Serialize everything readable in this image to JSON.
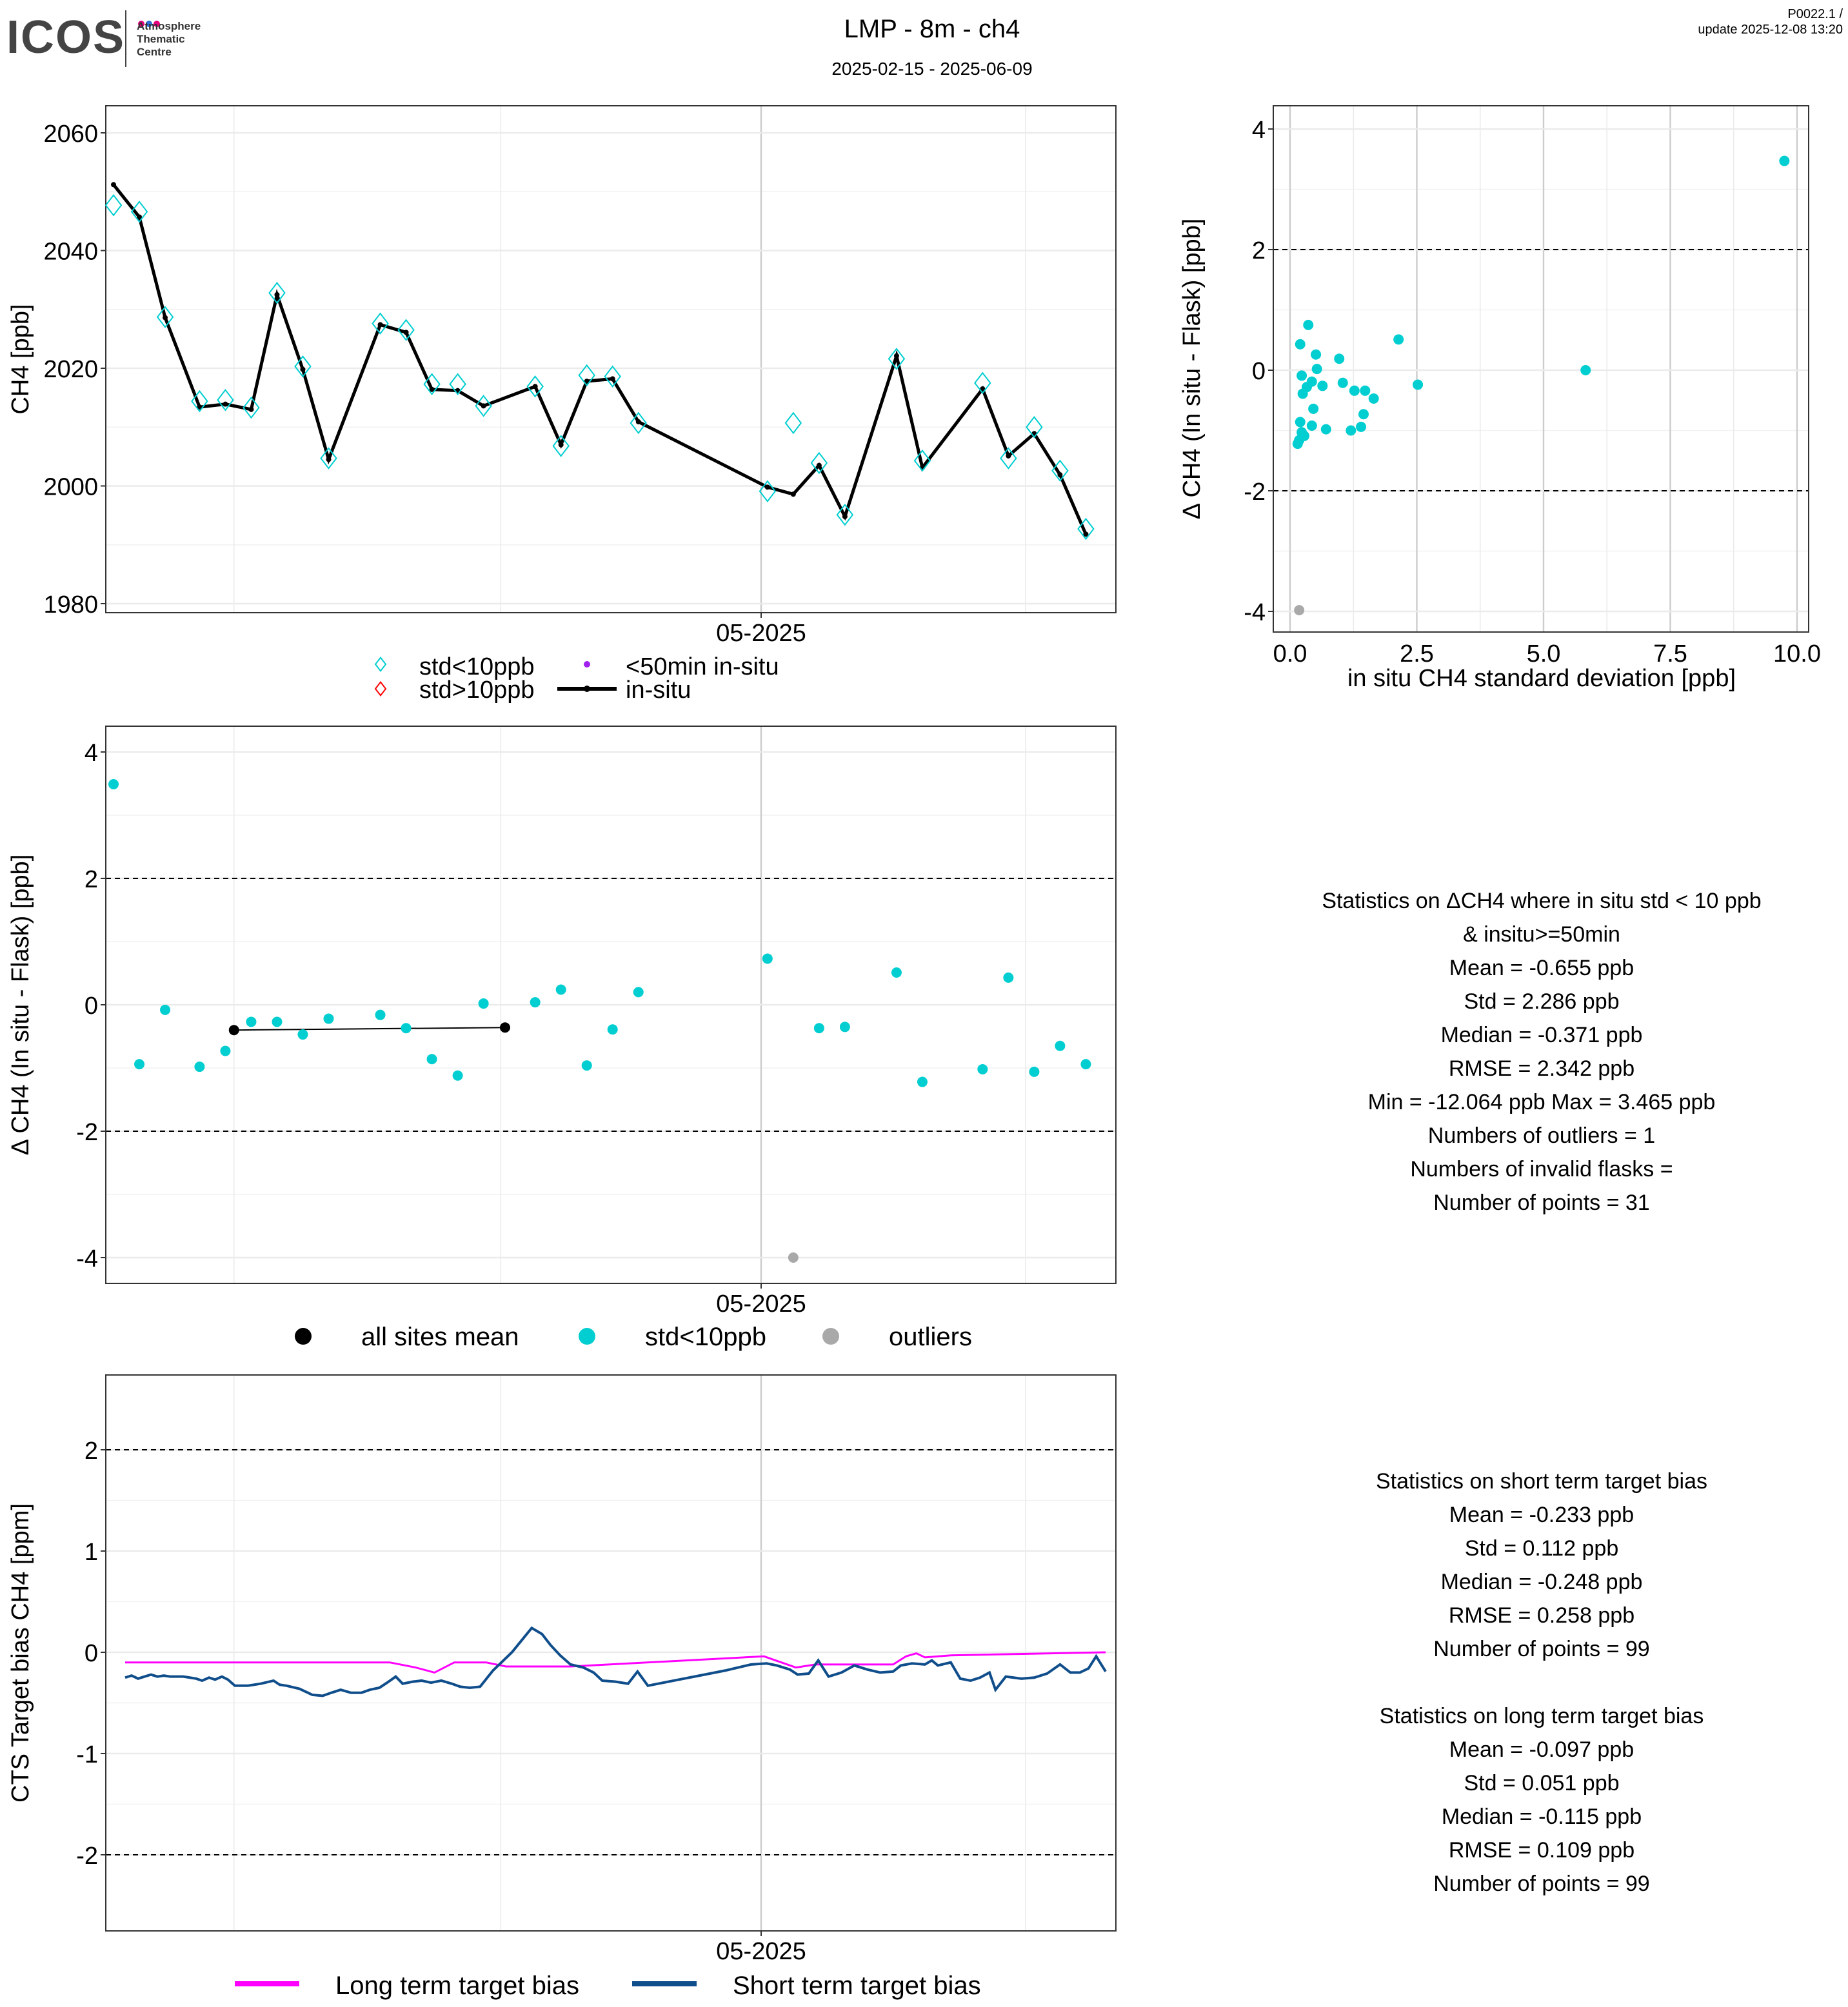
{
  "header": {
    "logo": "ICOS",
    "logo_sub": [
      "Atmosphere",
      "Thematic",
      "Centre"
    ],
    "title": "LMP - 8m - ch4",
    "period": "2025-02-15 - 2025-06-09",
    "version": "P0022.1 /",
    "update": "update  2025-12-08 13:20"
  },
  "colors": {
    "flask": "#00CED1",
    "insitu": "#000000",
    "outlier": "#A9A9A9",
    "long": "#FF00FF",
    "short": "#104E8B",
    "red": "#FF0000",
    "purple": "#A020F0"
  },
  "chart_data": [
    {
      "id": "timeseries",
      "type": "line",
      "ylabel": "CH4 [ppb]",
      "x_unit": "days since 2025-02-15",
      "xtick_labels": [
        "05-2025"
      ],
      "yticks": [
        1980,
        2000,
        2020,
        2040,
        2060
      ],
      "ylim": [
        1979,
        2063
      ],
      "flask_days": [
        0,
        3,
        6,
        10,
        13,
        16,
        19,
        22,
        25,
        31,
        34,
        37,
        40,
        43,
        49,
        52,
        55,
        58,
        61,
        76,
        79,
        82,
        85,
        91,
        94,
        101,
        104,
        107,
        110,
        113
      ],
      "flask": [
        2047.7,
        2046.6,
        2028.7,
        2014.4,
        2014.6,
        2013.3,
        2032.8,
        2020.3,
        2004.7,
        2027.6,
        2026.5,
        2017.3,
        2017.3,
        2013.6,
        2016.9,
        2006.8,
        2018.8,
        2018.6,
        2010.7,
        1999.1,
        2010.7,
        2003.9,
        1995.1,
        2021.6,
        2004.3,
        2017.5,
        2004.7,
        2010.0,
        2002.6,
        1992.7
      ],
      "insitu": [
        2051.2,
        2045.7,
        2028.6,
        2013.4,
        2013.9,
        2013.0,
        2032.5,
        2019.8,
        2004.5,
        2027.4,
        2026.1,
        2016.4,
        2016.2,
        2013.6,
        2016.9,
        2007.0,
        2017.8,
        2018.2,
        2010.9,
        1999.8,
        1998.6,
        2003.5,
        1994.8,
        2022.1,
        2003.1,
        2016.5,
        2005.1,
        2008.9,
        2001.9,
        1991.8
      ],
      "legend": [
        {
          "label": "std<10ppb"
        },
        {
          "label": "std>10ppb"
        },
        {
          "label": "<50min in-situ"
        },
        {
          "label": "in-situ"
        }
      ]
    },
    {
      "id": "scatter",
      "type": "scatter",
      "xlabel": "in situ CH4 standard deviation [ppb]",
      "ylabel": "Δ CH4 (In situ - Flask) [ppb]",
      "xticks": [
        "0.0",
        "2.5",
        "5.0",
        "7.5",
        "10.0"
      ],
      "yticks": [
        -4,
        -2,
        0,
        2,
        4
      ],
      "points": [
        [
          9.75,
          3.47
        ],
        [
          5.83,
          0
        ],
        [
          2.14,
          0.51
        ],
        [
          2.52,
          -0.24
        ],
        [
          0.36,
          0.75
        ],
        [
          0.2,
          0.43
        ],
        [
          0.51,
          0.26
        ],
        [
          0.97,
          0.19
        ],
        [
          0.23,
          -0.09
        ],
        [
          0.53,
          0.02
        ],
        [
          0.43,
          -0.19
        ],
        [
          0.33,
          -0.28
        ],
        [
          0.25,
          -0.39
        ],
        [
          0.64,
          -0.26
        ],
        [
          1.04,
          -0.21
        ],
        [
          1.27,
          -0.34
        ],
        [
          1.48,
          -0.34
        ],
        [
          1.65,
          -0.47
        ],
        [
          0.46,
          -0.64
        ],
        [
          1.45,
          -0.73
        ],
        [
          0.2,
          -0.86
        ],
        [
          0.43,
          -0.92
        ],
        [
          0.71,
          -0.98
        ],
        [
          1.4,
          -0.94
        ],
        [
          1.2,
          -1.0
        ],
        [
          0.23,
          -1.03
        ],
        [
          0.18,
          -1.16
        ],
        [
          0.15,
          -1.22
        ],
        [
          0.28,
          -1.09
        ]
      ],
      "outliers": [
        [
          0.18,
          -3.98
        ]
      ]
    },
    {
      "id": "delta",
      "type": "scatter",
      "ylabel": "Δ CH4 (In situ - Flask) [ppb]",
      "xtick_labels": [
        "05-2025"
      ],
      "yticks": [
        -4,
        -2,
        0,
        2,
        4
      ],
      "days": [
        0,
        3,
        6,
        10,
        13,
        16,
        19,
        22,
        25,
        31,
        34,
        37,
        40,
        43,
        49,
        52,
        55,
        58,
        61,
        76,
        82,
        85,
        91,
        94,
        101,
        104,
        107,
        110,
        113
      ],
      "values": [
        3.49,
        -0.94,
        -0.08,
        -0.98,
        -0.73,
        -0.27,
        -0.27,
        -0.47,
        -0.22,
        -0.16,
        -0.37,
        -0.86,
        -1.12,
        0.02,
        0.04,
        0.24,
        -0.96,
        -0.39,
        0.2,
        0.73,
        -0.37,
        -0.35,
        0.51,
        -1.22,
        -1.02,
        0.43,
        -1.06,
        -0.65,
        -0.94
      ],
      "outliers": [
        [
          79,
          -4.0
        ]
      ],
      "mean_line": [
        [
          14,
          -0.4
        ],
        [
          45.5,
          -0.36
        ]
      ],
      "legend": [
        {
          "label": "all sites mean"
        },
        {
          "label": "std<10ppb"
        },
        {
          "label": "outliers"
        }
      ]
    },
    {
      "id": "target",
      "type": "line",
      "ylabel": "CTS Target bias CH4 [ppm]",
      "xtick_labels": [
        "05-2025"
      ],
      "yticks": [
        -2,
        -1,
        0,
        1,
        2
      ],
      "long": [
        [
          1.35,
          -0.1
        ],
        [
          32.1,
          -0.1
        ],
        [
          35.1,
          -0.15
        ],
        [
          37.3,
          -0.2
        ],
        [
          39.6,
          -0.1
        ],
        [
          43.3,
          -0.1
        ],
        [
          45.6,
          -0.14
        ],
        [
          53.1,
          -0.14
        ],
        [
          75.6,
          -0.04
        ],
        [
          79.3,
          -0.15
        ],
        [
          81.6,
          -0.12
        ],
        [
          90.6,
          -0.12
        ],
        [
          92.1,
          -0.04
        ],
        [
          93.3,
          -0.01
        ],
        [
          94.3,
          -0.05
        ],
        [
          97.3,
          -0.03
        ],
        [
          115.3,
          0
        ]
      ],
      "short": [
        [
          1.35,
          -0.25
        ],
        [
          2.1,
          -0.23
        ],
        [
          2.85,
          -0.26
        ],
        [
          3.6,
          -0.24
        ],
        [
          4.35,
          -0.22
        ],
        [
          5.1,
          -0.24
        ],
        [
          5.85,
          -0.23
        ],
        [
          6.6,
          -0.24
        ],
        [
          8.1,
          -0.24
        ],
        [
          9.6,
          -0.26
        ],
        [
          10.3,
          -0.28
        ],
        [
          11.1,
          -0.25
        ],
        [
          11.8,
          -0.27
        ],
        [
          12.6,
          -0.24
        ],
        [
          13.3,
          -0.27
        ],
        [
          14.1,
          -0.33
        ],
        [
          15.6,
          -0.33
        ],
        [
          17.1,
          -0.31
        ],
        [
          18.6,
          -0.28
        ],
        [
          19.3,
          -0.32
        ],
        [
          20.1,
          -0.33
        ],
        [
          21.6,
          -0.36
        ],
        [
          23.1,
          -0.42
        ],
        [
          24.3,
          -0.43
        ],
        [
          25.3,
          -0.4
        ],
        [
          26.4,
          -0.37
        ],
        [
          27.6,
          -0.4
        ],
        [
          28.8,
          -0.4
        ],
        [
          29.8,
          -0.37
        ],
        [
          30.9,
          -0.35
        ],
        [
          31.8,
          -0.3
        ],
        [
          32.8,
          -0.24
        ],
        [
          33.6,
          -0.31
        ],
        [
          34.8,
          -0.29
        ],
        [
          35.8,
          -0.28
        ],
        [
          36.9,
          -0.3
        ],
        [
          38.1,
          -0.28
        ],
        [
          39.3,
          -0.31
        ],
        [
          40.3,
          -0.34
        ],
        [
          41.4,
          -0.35
        ],
        [
          42.6,
          -0.34
        ],
        [
          44.1,
          -0.18
        ],
        [
          46.3,
          0.0
        ],
        [
          48.6,
          0.24
        ],
        [
          49.8,
          0.18
        ],
        [
          50.8,
          0.07
        ],
        [
          51.9,
          -0.03
        ],
        [
          53.1,
          -0.12
        ],
        [
          54.6,
          -0.15
        ],
        [
          55.8,
          -0.2
        ],
        [
          56.8,
          -0.28
        ],
        [
          58.3,
          -0.29
        ],
        [
          59.8,
          -0.31
        ],
        [
          60.9,
          -0.19
        ],
        [
          62.1,
          -0.33
        ],
        [
          65.1,
          -0.28
        ],
        [
          68.1,
          -0.23
        ],
        [
          71.1,
          -0.18
        ],
        [
          74.1,
          -0.12
        ],
        [
          75.9,
          -0.11
        ],
        [
          77.1,
          -0.13
        ],
        [
          78.6,
          -0.17
        ],
        [
          79.5,
          -0.22
        ],
        [
          80.8,
          -0.21
        ],
        [
          81.9,
          -0.08
        ],
        [
          83.1,
          -0.24
        ],
        [
          84.6,
          -0.2
        ],
        [
          86.1,
          -0.13
        ],
        [
          87.6,
          -0.17
        ],
        [
          89.1,
          -0.2
        ],
        [
          90.6,
          -0.19
        ],
        [
          91.5,
          -0.13
        ],
        [
          92.8,
          -0.11
        ],
        [
          94.3,
          -0.12
        ],
        [
          95.1,
          -0.08
        ],
        [
          95.8,
          -0.13
        ],
        [
          97.3,
          -0.1
        ],
        [
          98.4,
          -0.26
        ],
        [
          99.6,
          -0.28
        ],
        [
          100.7,
          -0.25
        ],
        [
          101.8,
          -0.2
        ],
        [
          102.5,
          -0.37
        ],
        [
          103.7,
          -0.24
        ],
        [
          105.5,
          -0.26
        ],
        [
          107.0,
          -0.25
        ],
        [
          108.5,
          -0.21
        ],
        [
          110.0,
          -0.12
        ],
        [
          111.2,
          -0.2
        ],
        [
          112.3,
          -0.2
        ],
        [
          113.3,
          -0.16
        ],
        [
          114.2,
          -0.04
        ],
        [
          115.3,
          -0.19
        ]
      ],
      "legend": [
        {
          "label": "Long term target bias"
        },
        {
          "label": "Short term target bias"
        }
      ]
    }
  ],
  "stats_flask": [
    "Statistics on ΔCH4 where in situ std < 10 ppb",
    "& insitu>=50min",
    "Mean =  -0.655 ppb",
    "Std =  2.286 ppb",
    "Median =  -0.371 ppb",
    "RMSE =  2.342 ppb",
    "Min =  -12.064 ppb Max =  3.465 ppb",
    "Numbers of outliers =  1",
    "Numbers of invalid flasks =",
    "Number of points =  31"
  ],
  "stats_target": [
    "Statistics on short term target bias",
    "Mean =  -0.233 ppb",
    "Std =  0.112 ppb",
    "Median =  -0.248 ppb",
    "RMSE =  0.258 ppb",
    "Number of points =  99",
    "",
    "Statistics on long term target bias",
    "Mean =  -0.097 ppb",
    "Std =  0.051 ppb",
    "Median =  -0.115 ppb",
    "RMSE =  0.109 ppb",
    "Number of points =  99"
  ]
}
